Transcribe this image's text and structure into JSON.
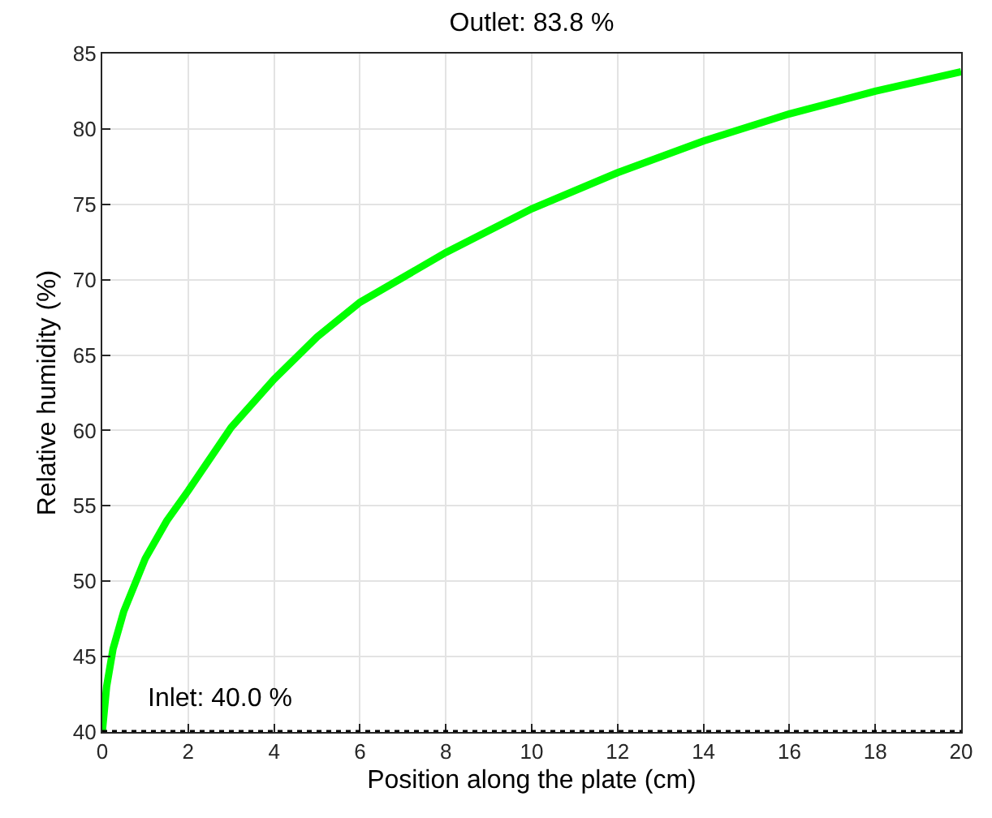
{
  "chart_data": {
    "type": "line",
    "title": "Outlet: 83.8 %",
    "xlabel": "Position along the plate (cm)",
    "ylabel": "Relative humidity (%)",
    "x": [
      0,
      0.1,
      0.25,
      0.5,
      1,
      1.5,
      2,
      3,
      4,
      5,
      6,
      8,
      10,
      12,
      14,
      16,
      18,
      20
    ],
    "series": [
      {
        "color": "#00ff00",
        "values": [
          40,
          43,
          45.5,
          48,
          51.5,
          54,
          56,
          60.2,
          63.4,
          66.2,
          68.5,
          71.8,
          74.7,
          77.1,
          79.2,
          81,
          82.5,
          83.8
        ]
      }
    ],
    "annotations": [
      "Inlet: 40.0 %"
    ],
    "ref_lines": [
      {
        "axis": "y",
        "value": 40,
        "color": "#000000",
        "line_style": "dotted"
      }
    ],
    "xlim": [
      0,
      20
    ],
    "xticks": [
      0,
      2,
      4,
      6,
      8,
      10,
      12,
      14,
      16,
      18,
      20
    ],
    "ylim": [
      40,
      85
    ],
    "yticks": [
      40,
      45,
      50,
      55,
      60,
      65,
      70,
      75,
      80,
      85
    ],
    "grid": true,
    "marker": "none",
    "line_style": "solid"
  }
}
